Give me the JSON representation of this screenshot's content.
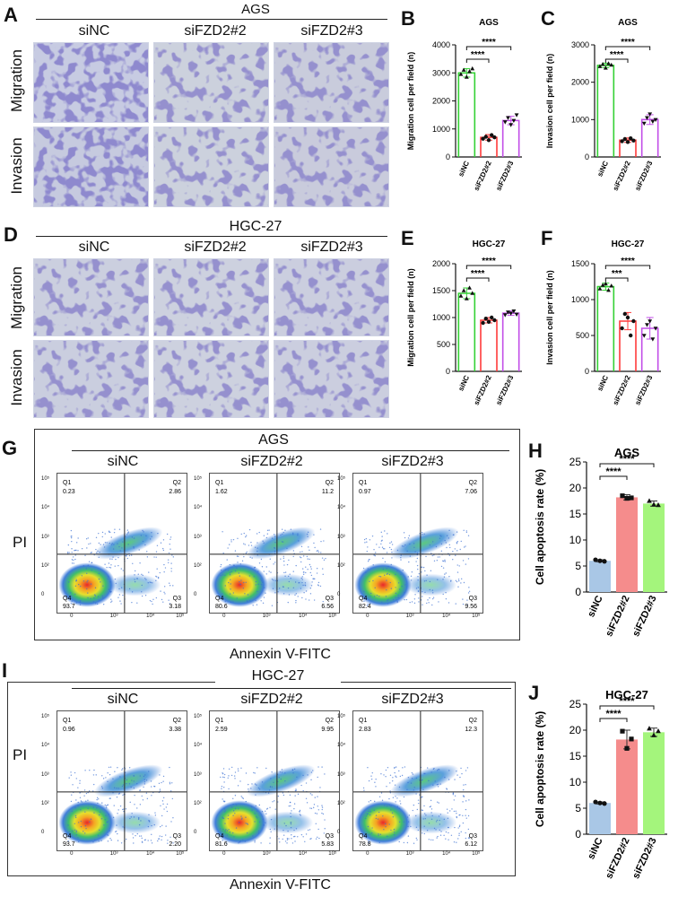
{
  "panel_labels": {
    "A": "A",
    "B": "B",
    "C": "C",
    "D": "D",
    "E": "E",
    "F": "F",
    "G": "G",
    "H": "H",
    "I": "I",
    "J": "J"
  },
  "panelA": {
    "title": "AGS",
    "samples": [
      "siNC",
      "siFZD2#2",
      "siFZD2#3"
    ],
    "rows": [
      "Migration",
      "Invasion"
    ]
  },
  "panelD": {
    "title": "HGC-27",
    "samples": [
      "siNC",
      "siFZD2#2",
      "siFZD2#3"
    ],
    "rows": [
      "Migration",
      "Invasion"
    ]
  },
  "panelG": {
    "title": "AGS",
    "samples": [
      "siNC",
      "siFZD2#2",
      "siFZD2#3"
    ],
    "ylabel": "PI",
    "xlabel": "Annexin V-FITC",
    "quadrants": [
      {
        "q1": "Q1",
        "q1v": "0.23",
        "q2": "Q2",
        "q2v": "2.86",
        "q3": "Q3",
        "q3v": "3.18",
        "q4": "Q4",
        "q4v": "93.7"
      },
      {
        "q1": "Q1",
        "q1v": "1.62",
        "q2": "Q2",
        "q2v": "11.2",
        "q3": "Q3",
        "q3v": "6.56",
        "q4": "Q4",
        "q4v": "80.6"
      },
      {
        "q1": "Q1",
        "q1v": "0.97",
        "q2": "Q2",
        "q2v": "7.06",
        "q3": "Q3",
        "q3v": "9.56",
        "q4": "Q4",
        "q4v": "82.4"
      }
    ]
  },
  "panelI": {
    "title": "HGC-27",
    "samples": [
      "siNC",
      "siFZD2#2",
      "siFZD2#3"
    ],
    "ylabel": "PI",
    "xlabel": "Annexin V-FITC",
    "quadrants": [
      {
        "q1": "Q1",
        "q1v": "0.96",
        "q2": "Q2",
        "q2v": "3.38",
        "q3": "Q3",
        "q3v": "2.20",
        "q4": "Q4",
        "q4v": "93.7"
      },
      {
        "q1": "Q1",
        "q1v": "2.59",
        "q2": "Q2",
        "q2v": "9.95",
        "q3": "Q3",
        "q3v": "5.83",
        "q4": "Q4",
        "q4v": "81.6"
      },
      {
        "q1": "Q1",
        "q1v": "2.83",
        "q2": "Q2",
        "q2v": "12.3",
        "q3": "Q3",
        "q3v": "6.12",
        "q4": "Q4",
        "q4v": "78.8"
      }
    ]
  },
  "flow_axis": {
    "ticks": [
      "10⁵",
      "10⁴",
      "10³",
      "10²",
      "0"
    ],
    "xticks": [
      "0",
      "10³",
      "10⁴",
      "10⁵"
    ]
  },
  "colors": {
    "siNC_B": "#35d135",
    "siFZD2_2_B": "#ff3b3b",
    "siFZD2_3_B": "#c24ee8",
    "siNC_H": "#a9c7e6",
    "siFZD2_2_H": "#f58c8c",
    "siFZD2_3_H": "#a4f57c"
  },
  "chart_data": [
    {
      "id": "B",
      "type": "bar",
      "title": "AGS",
      "ylabel": "Migration cell per field (n)",
      "categories": [
        "siNC",
        "siFZD2#2",
        "siFZD2#3"
      ],
      "values": [
        3000,
        700,
        1300
      ],
      "errors": [
        150,
        100,
        150
      ],
      "points": [
        [
          2950,
          3100,
          2850,
          3050,
          3150
        ],
        [
          650,
          720,
          600,
          780,
          700
        ],
        [
          1250,
          1400,
          1150,
          1300,
          1500
        ]
      ],
      "markers": [
        "triangle",
        "circle",
        "invtriangle"
      ],
      "ylim": [
        0,
        4000
      ],
      "yticks": [
        0,
        1000,
        2000,
        3000,
        4000
      ],
      "sig": [
        {
          "from": 0,
          "to": 1,
          "label": "****"
        },
        {
          "from": 0,
          "to": 2,
          "label": "****"
        }
      ]
    },
    {
      "id": "C",
      "type": "bar",
      "title": "AGS",
      "ylabel": "Invasion cell per field (n)",
      "categories": [
        "siNC",
        "siFZD2#2",
        "siFZD2#3"
      ],
      "values": [
        2450,
        450,
        1000
      ],
      "errors": [
        60,
        60,
        130
      ],
      "points": [
        [
          2420,
          2480,
          2380,
          2500,
          2460
        ],
        [
          420,
          480,
          400,
          500,
          440
        ],
        [
          900,
          1050,
          1150,
          950,
          1000
        ]
      ],
      "markers": [
        "triangle",
        "circle",
        "invtriangle"
      ],
      "ylim": [
        0,
        3000
      ],
      "yticks": [
        0,
        1000,
        2000,
        3000
      ],
      "sig": [
        {
          "from": 0,
          "to": 1,
          "label": "****"
        },
        {
          "from": 0,
          "to": 2,
          "label": "****"
        }
      ]
    },
    {
      "id": "E",
      "type": "bar",
      "title": "HGC-27",
      "ylabel": "Migration cell per field (n)",
      "categories": [
        "siNC",
        "siFZD2#2",
        "siFZD2#3"
      ],
      "values": [
        1450,
        950,
        1080
      ],
      "errors": [
        100,
        50,
        40
      ],
      "points": [
        [
          1400,
          1500,
          1350,
          1550,
          1450
        ],
        [
          900,
          980,
          920,
          1000,
          950
        ],
        [
          1050,
          1100,
          1080,
          1120,
          1060
        ]
      ],
      "markers": [
        "triangle",
        "circle",
        "invtriangle"
      ],
      "ylim": [
        0,
        2000
      ],
      "yticks": [
        0,
        500,
        1000,
        1500,
        2000
      ],
      "sig": [
        {
          "from": 0,
          "to": 1,
          "label": "****"
        },
        {
          "from": 0,
          "to": 2,
          "label": "****"
        }
      ]
    },
    {
      "id": "F",
      "type": "bar",
      "title": "HGC-27",
      "ylabel": "Invasion cell per field (n)",
      "categories": [
        "siNC",
        "siFZD2#2",
        "siFZD2#3"
      ],
      "values": [
        1180,
        700,
        600
      ],
      "errors": [
        50,
        120,
        150
      ],
      "points": [
        [
          1150,
          1200,
          1220,
          1130,
          1190
        ],
        [
          600,
          800,
          750,
          500,
          700
        ],
        [
          500,
          650,
          700,
          450,
          600
        ]
      ],
      "markers": [
        "triangle",
        "circle",
        "invtriangle"
      ],
      "ylim": [
        0,
        1500
      ],
      "yticks": [
        0,
        500,
        1000,
        1500
      ],
      "sig": [
        {
          "from": 0,
          "to": 1,
          "label": "***"
        },
        {
          "from": 0,
          "to": 2,
          "label": "****"
        }
      ]
    },
    {
      "id": "H",
      "type": "bar",
      "title": "AGS",
      "ylabel": "Cell apoptosis rate (%)",
      "categories": [
        "siNC",
        "siFZD2#2",
        "siFZD2#3"
      ],
      "values": [
        6.0,
        18.2,
        17.0
      ],
      "errors": [
        0.2,
        0.5,
        0.5
      ],
      "points": [
        [
          6.2,
          6.0,
          5.9
        ],
        [
          18.5,
          18.0,
          18.1
        ],
        [
          17.5,
          16.8,
          16.7
        ]
      ],
      "markers": [
        "circle",
        "square",
        "triangle"
      ],
      "ylim": [
        0,
        25
      ],
      "yticks": [
        0,
        5,
        10,
        15,
        20,
        25
      ],
      "sig": [
        {
          "from": 0,
          "to": 1,
          "label": "****"
        },
        {
          "from": 0,
          "to": 2,
          "label": "****"
        }
      ]
    },
    {
      "id": "J",
      "type": "bar",
      "title": "HGC-27",
      "ylabel": "Cell apoptosis rate (%)",
      "categories": [
        "siNC",
        "siFZD2#2",
        "siFZD2#3"
      ],
      "values": [
        6.0,
        18.2,
        19.6
      ],
      "errors": [
        0.2,
        1.8,
        0.8
      ],
      "points": [
        [
          6.2,
          6.0,
          5.9
        ],
        [
          19.8,
          16.5,
          18.3
        ],
        [
          20.3,
          19.0,
          19.8
        ]
      ],
      "markers": [
        "circle",
        "square",
        "triangle"
      ],
      "ylim": [
        0,
        25
      ],
      "yticks": [
        0,
        5,
        10,
        15,
        20,
        25
      ],
      "sig": [
        {
          "from": 0,
          "to": 1,
          "label": "****"
        },
        {
          "from": 0,
          "to": 2,
          "label": "****"
        }
      ]
    }
  ]
}
